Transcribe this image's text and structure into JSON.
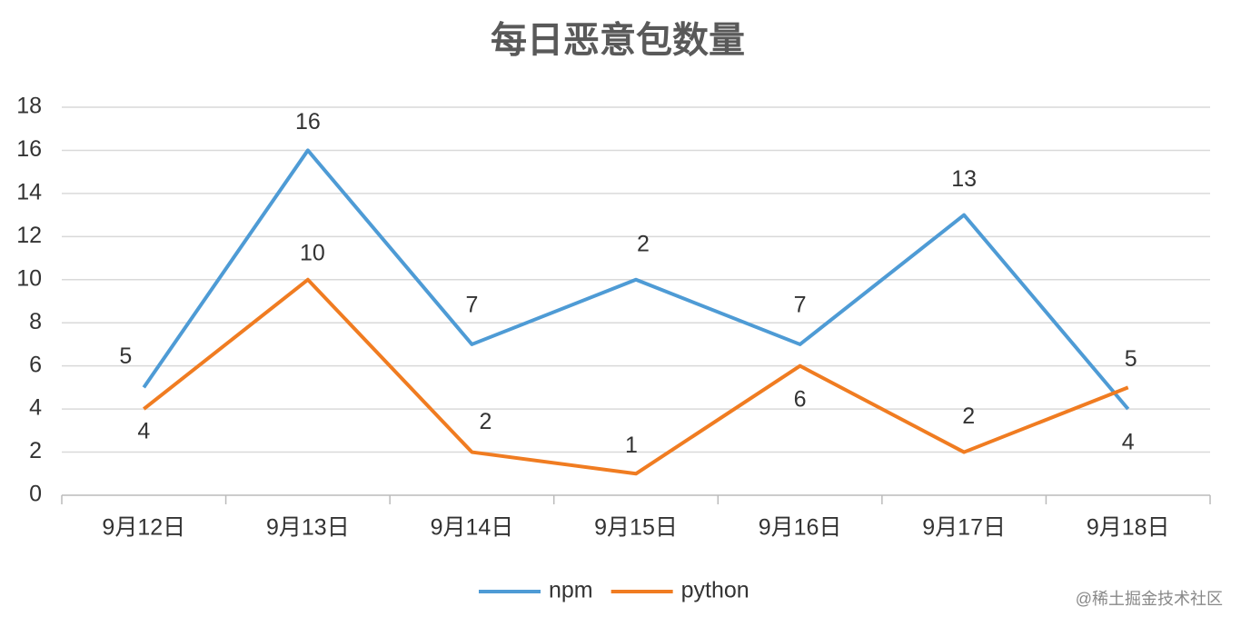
{
  "chart_data": {
    "type": "line",
    "title": "每日恶意包数量",
    "categories": [
      "9月12日",
      "9月13日",
      "9月14日",
      "9月15日",
      "9月16日",
      "9月17日",
      "9月18日"
    ],
    "series": [
      {
        "name": "npm",
        "color": "#4e9bd5",
        "values": [
          5,
          16,
          7,
          10,
          7,
          13,
          4
        ],
        "value_labels": [
          "5",
          "16",
          "7",
          null,
          "7",
          "13",
          "4"
        ]
      },
      {
        "name": "python",
        "color": "#f07c21",
        "values": [
          4,
          10,
          2,
          1,
          6,
          2,
          5
        ]
      }
    ],
    "annotations": [
      {
        "text": "2"
      }
    ],
    "ylim": [
      0,
      18
    ],
    "yticks": [
      0,
      2,
      4,
      6,
      8,
      10,
      12,
      14,
      16,
      18
    ],
    "grid": true,
    "legend": "bottom",
    "watermark": "@稀土掘金技术社区"
  }
}
